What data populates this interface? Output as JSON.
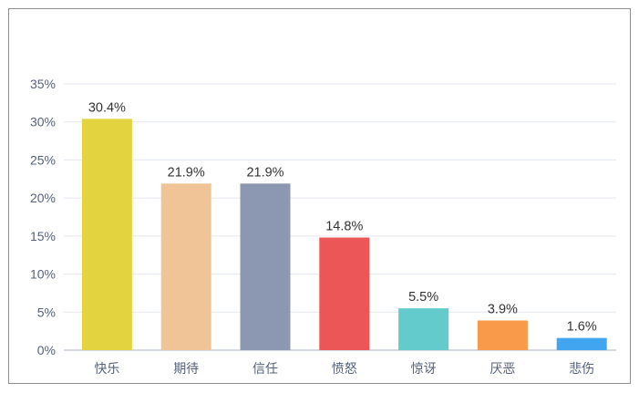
{
  "chart_data": {
    "type": "bar",
    "title": "",
    "xlabel": "",
    "ylabel": "",
    "ylim": [
      0,
      35
    ],
    "ytick_values": [
      0,
      5,
      10,
      15,
      20,
      25,
      30,
      35
    ],
    "ytick_labels": [
      "0%",
      "5%",
      "10%",
      "15%",
      "20%",
      "25%",
      "30%",
      "35%"
    ],
    "categories": [
      "快乐",
      "期待",
      "信任",
      "愤怒",
      "惊讶",
      "厌恶",
      "悲伤"
    ],
    "values": [
      30.4,
      21.9,
      21.9,
      14.8,
      5.5,
      3.9,
      1.6
    ],
    "value_labels": [
      "30.4%",
      "21.9%",
      "21.9%",
      "14.8%",
      "5.5%",
      "3.9%",
      "1.6%"
    ],
    "colors": [
      "#e3d43f",
      "#f0c497",
      "#8c98b1",
      "#ec5656",
      "#63cbcb",
      "#f89a4a",
      "#41a5ef"
    ],
    "grid": true,
    "legend": "none"
  }
}
